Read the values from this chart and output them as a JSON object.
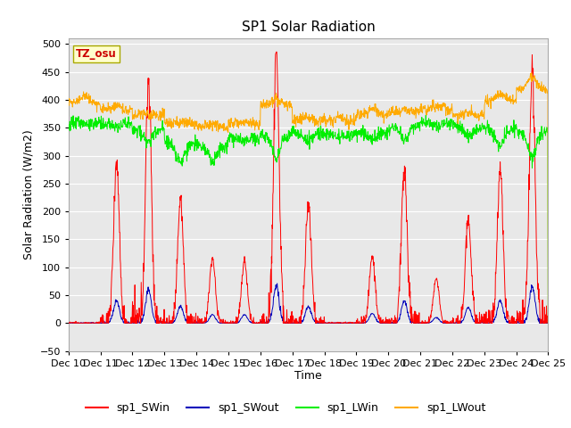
{
  "title": "SP1 Solar Radiation",
  "xlabel": "Time",
  "ylabel": "Solar Radiation (W/m2)",
  "ylim": [
    -50,
    510
  ],
  "yticks": [
    -50,
    0,
    50,
    100,
    150,
    200,
    250,
    300,
    350,
    400,
    450,
    500
  ],
  "n_days": 15,
  "start_day": 10,
  "points_per_day": 96,
  "colors": {
    "SWin": "#ff0000",
    "SWout": "#0000bb",
    "LWin": "#00ee00",
    "LWout": "#ffaa00"
  },
  "legend_labels": [
    "sp1_SWin",
    "sp1_SWout",
    "sp1_LWin",
    "sp1_LWout"
  ],
  "tz_label": "TZ_osu",
  "bg_color": "#e8e8e8",
  "grid_color": "#ffffff",
  "peak_heights_SWin": [
    0,
    290,
    435,
    220,
    115,
    110,
    480,
    215,
    0,
    120,
    275,
    80,
    190,
    275,
    450
  ],
  "peak_heights_SWout": [
    0,
    40,
    60,
    30,
    15,
    15,
    65,
    30,
    0,
    17,
    40,
    10,
    28,
    40,
    65
  ],
  "LWin_base": [
    358,
    356,
    348,
    322,
    318,
    332,
    338,
    343,
    338,
    342,
    352,
    358,
    352,
    348,
    342
  ],
  "LWout_base": [
    392,
    382,
    373,
    358,
    352,
    358,
    390,
    362,
    362,
    372,
    378,
    383,
    372,
    398,
    418
  ],
  "LWin_dips": [
    0,
    5,
    25,
    35,
    28,
    5,
    42,
    18,
    5,
    12,
    22,
    5,
    18,
    32,
    42
  ],
  "LWout_bumps": [
    15,
    8,
    3,
    2,
    6,
    2,
    12,
    6,
    6,
    12,
    3,
    6,
    6,
    12,
    22
  ]
}
